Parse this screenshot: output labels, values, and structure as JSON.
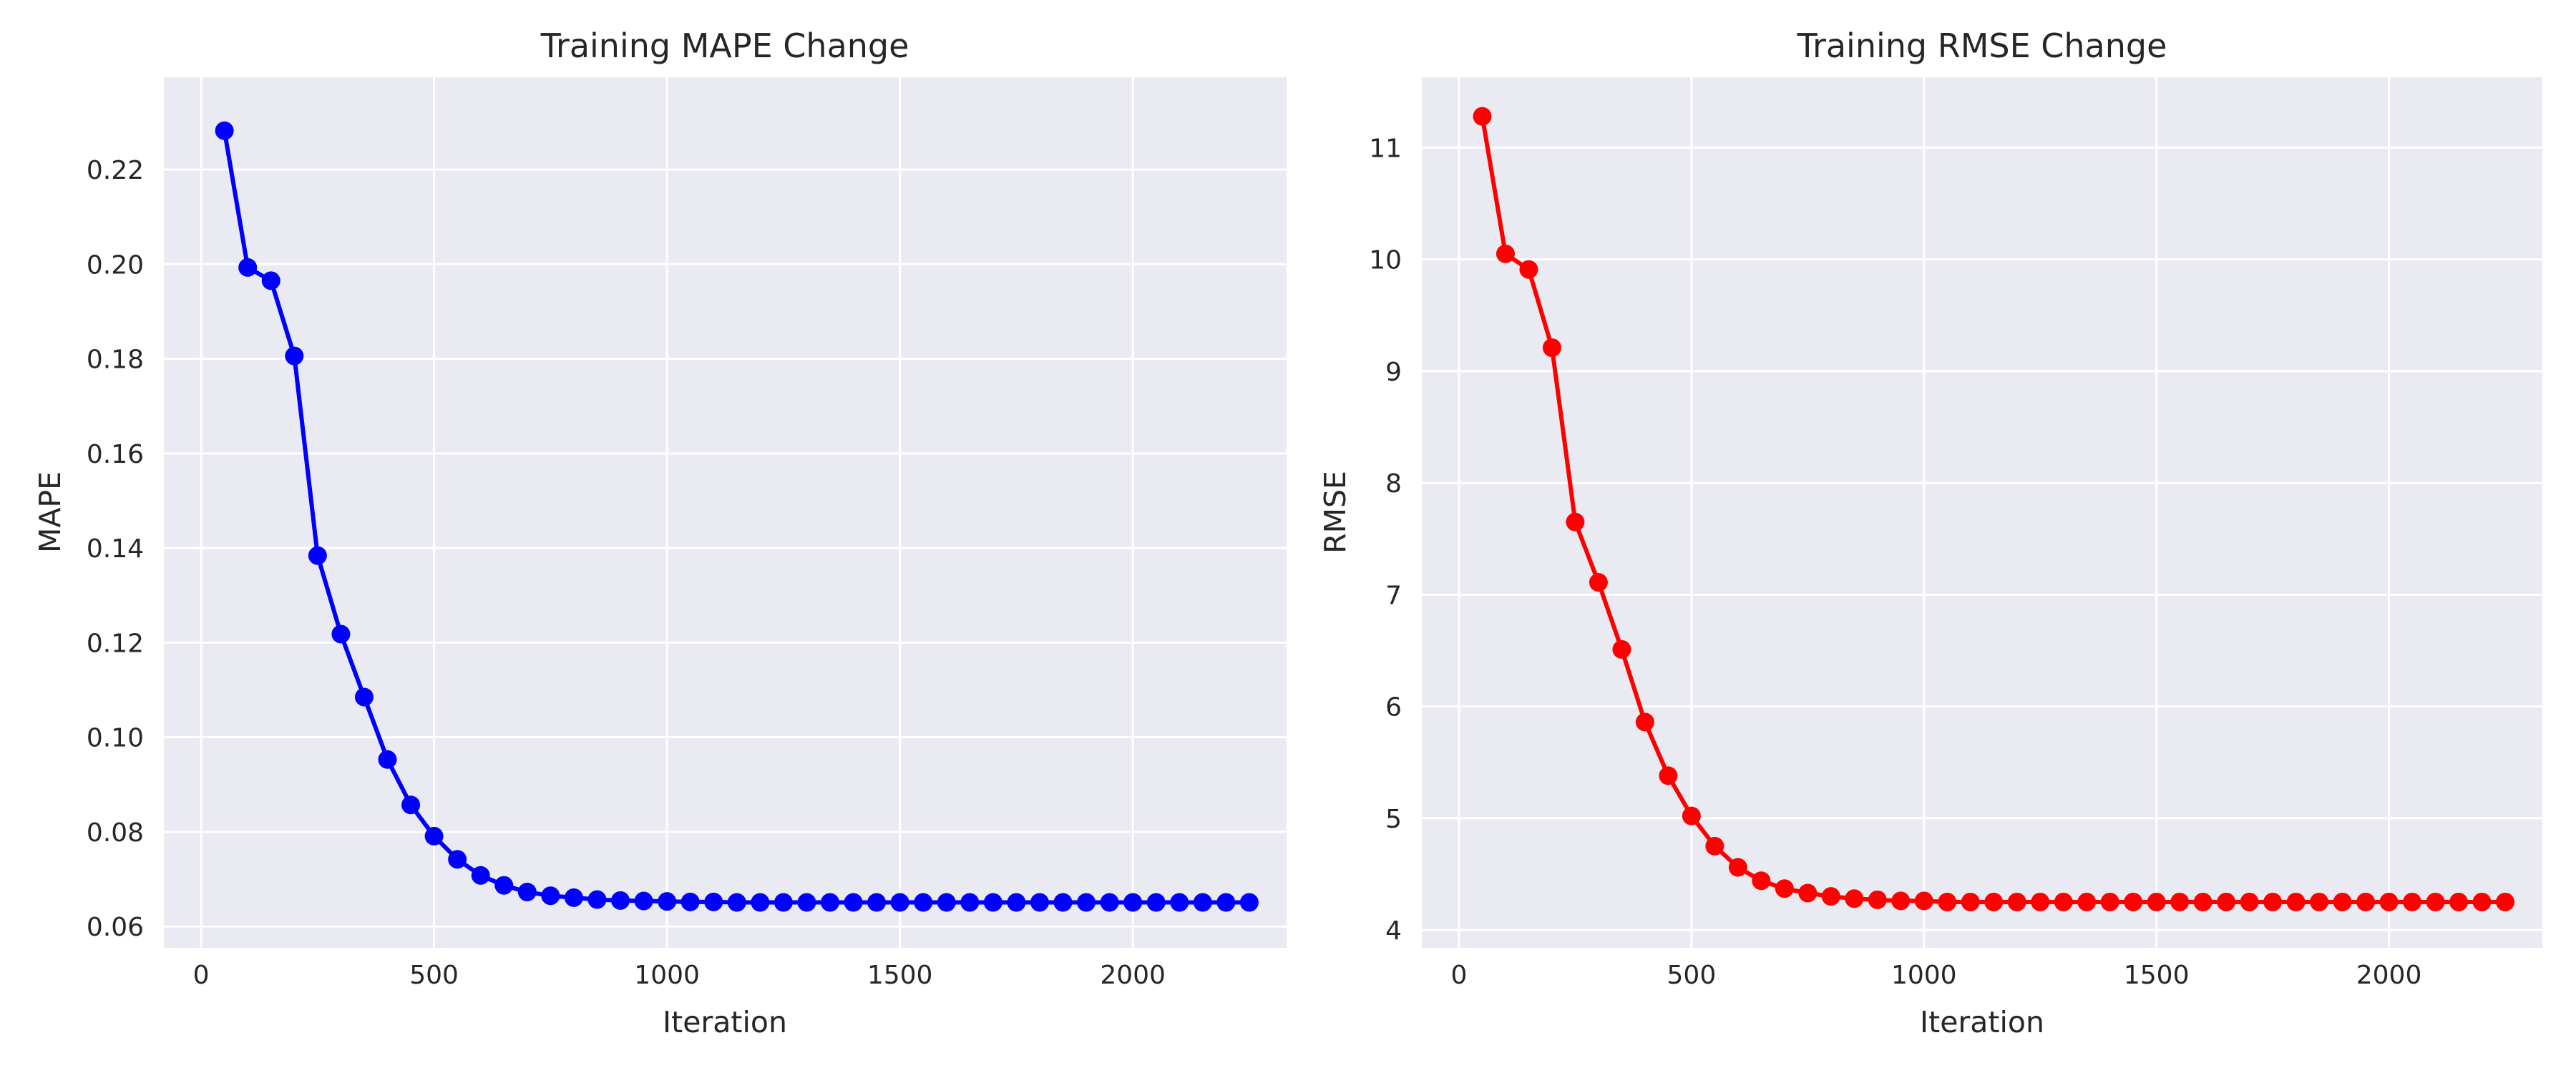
{
  "chart_data": [
    {
      "type": "line",
      "title": "Training MAPE Change",
      "xlabel": "Iteration",
      "ylabel": "MAPE",
      "xlim": [
        -80,
        2330
      ],
      "ylim": [
        0.0555,
        0.2395
      ],
      "xticks": [
        0,
        500,
        1000,
        1500,
        2000
      ],
      "xtick_labels": [
        "0",
        "500",
        "1000",
        "1500",
        "2000"
      ],
      "yticks": [
        0.06,
        0.08,
        0.1,
        0.12,
        0.14,
        0.16,
        0.18,
        0.2,
        0.22
      ],
      "ytick_labels": [
        "0.06",
        "0.08",
        "0.10",
        "0.12",
        "0.14",
        "0.16",
        "0.18",
        "0.20",
        "0.22"
      ],
      "grid": true,
      "color": "#0000ff",
      "marker": "circle",
      "series": [
        {
          "x": [
            50,
            100,
            150,
            200,
            250,
            300,
            350,
            400,
            450,
            500,
            550,
            600,
            650,
            700,
            750,
            800,
            850,
            900,
            950,
            1000,
            1050,
            1100,
            1150,
            1200,
            1250,
            1300,
            1350,
            1400,
            1450,
            1500,
            1550,
            1600,
            1650,
            1700,
            1750,
            1800,
            1850,
            1900,
            1950,
            2000,
            2050,
            2100,
            2150,
            2200,
            2250
          ],
          "values": [
            0.2282,
            0.1993,
            0.1965,
            0.1806,
            0.1384,
            0.1218,
            0.1085,
            0.0953,
            0.0857,
            0.0791,
            0.0742,
            0.0708,
            0.0687,
            0.0673,
            0.0665,
            0.0661,
            0.0657,
            0.0655,
            0.0654,
            0.0653,
            0.0652,
            0.0652,
            0.0651,
            0.0651,
            0.0651,
            0.0651,
            0.0651,
            0.0651,
            0.0651,
            0.0651,
            0.0651,
            0.0651,
            0.0651,
            0.0651,
            0.0651,
            0.0651,
            0.0651,
            0.0651,
            0.0651,
            0.0651,
            0.0651,
            0.0651,
            0.0651,
            0.0651,
            0.0651
          ]
        }
      ]
    },
    {
      "type": "line",
      "title": "Training RMSE Change",
      "xlabel": "Iteration",
      "ylabel": "RMSE",
      "xlim": [
        -80,
        2330
      ],
      "ylim": [
        3.84,
        11.63
      ],
      "xticks": [
        0,
        500,
        1000,
        1500,
        2000
      ],
      "xtick_labels": [
        "0",
        "500",
        "1000",
        "1500",
        "2000"
      ],
      "yticks": [
        4,
        5,
        6,
        7,
        8,
        9,
        10,
        11
      ],
      "ytick_labels": [
        "4",
        "5",
        "6",
        "7",
        "8",
        "9",
        "10",
        "11"
      ],
      "grid": true,
      "color": "#ff0000",
      "marker": "circle",
      "series": [
        {
          "x": [
            50,
            100,
            150,
            200,
            250,
            300,
            350,
            400,
            450,
            500,
            550,
            600,
            650,
            700,
            750,
            800,
            850,
            900,
            950,
            1000,
            1050,
            1100,
            1150,
            1200,
            1250,
            1300,
            1350,
            1400,
            1450,
            1500,
            1550,
            1600,
            1650,
            1700,
            1750,
            1800,
            1850,
            1900,
            1950,
            2000,
            2050,
            2100,
            2150,
            2200,
            2250
          ],
          "values": [
            11.28,
            10.05,
            9.91,
            9.21,
            7.65,
            7.11,
            6.51,
            5.86,
            5.38,
            5.02,
            4.75,
            4.56,
            4.44,
            4.37,
            4.33,
            4.3,
            4.28,
            4.27,
            4.26,
            4.26,
            4.25,
            4.25,
            4.25,
            4.25,
            4.25,
            4.25,
            4.25,
            4.25,
            4.25,
            4.25,
            4.25,
            4.25,
            4.25,
            4.25,
            4.25,
            4.25,
            4.25,
            4.25,
            4.25,
            4.25,
            4.25,
            4.25,
            4.25,
            4.25,
            4.25
          ]
        }
      ]
    }
  ]
}
